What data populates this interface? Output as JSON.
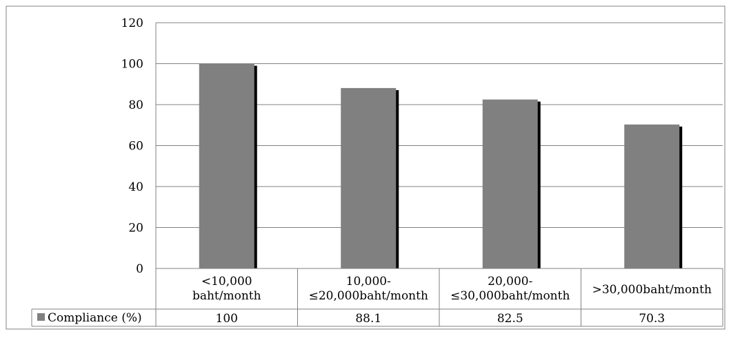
{
  "chart_data": {
    "type": "bar",
    "categories": [
      [
        "<10,000",
        "baht/month"
      ],
      [
        "10,000-",
        "≤20,000baht/month"
      ],
      [
        "20,000-",
        "≤30,000baht/month"
      ],
      [
        ">30,000baht/month"
      ]
    ],
    "series": [
      {
        "name": "Compliance (%)",
        "values": [
          100,
          88.1,
          82.5,
          70.3
        ],
        "color": "#808080",
        "shadow_color": "#000000"
      }
    ],
    "data_table_values": [
      "100",
      "88.1",
      "82.5",
      "70.3"
    ],
    "ylim": [
      0,
      120
    ],
    "yticks": [
      0,
      20,
      40,
      60,
      80,
      100,
      120
    ],
    "title": "",
    "xlabel": "",
    "ylabel": "",
    "grid": true,
    "legend": "in data table (bottom-left)",
    "colors": {
      "gridline": "#808080",
      "border": "#808080",
      "background": "#ffffff"
    }
  }
}
